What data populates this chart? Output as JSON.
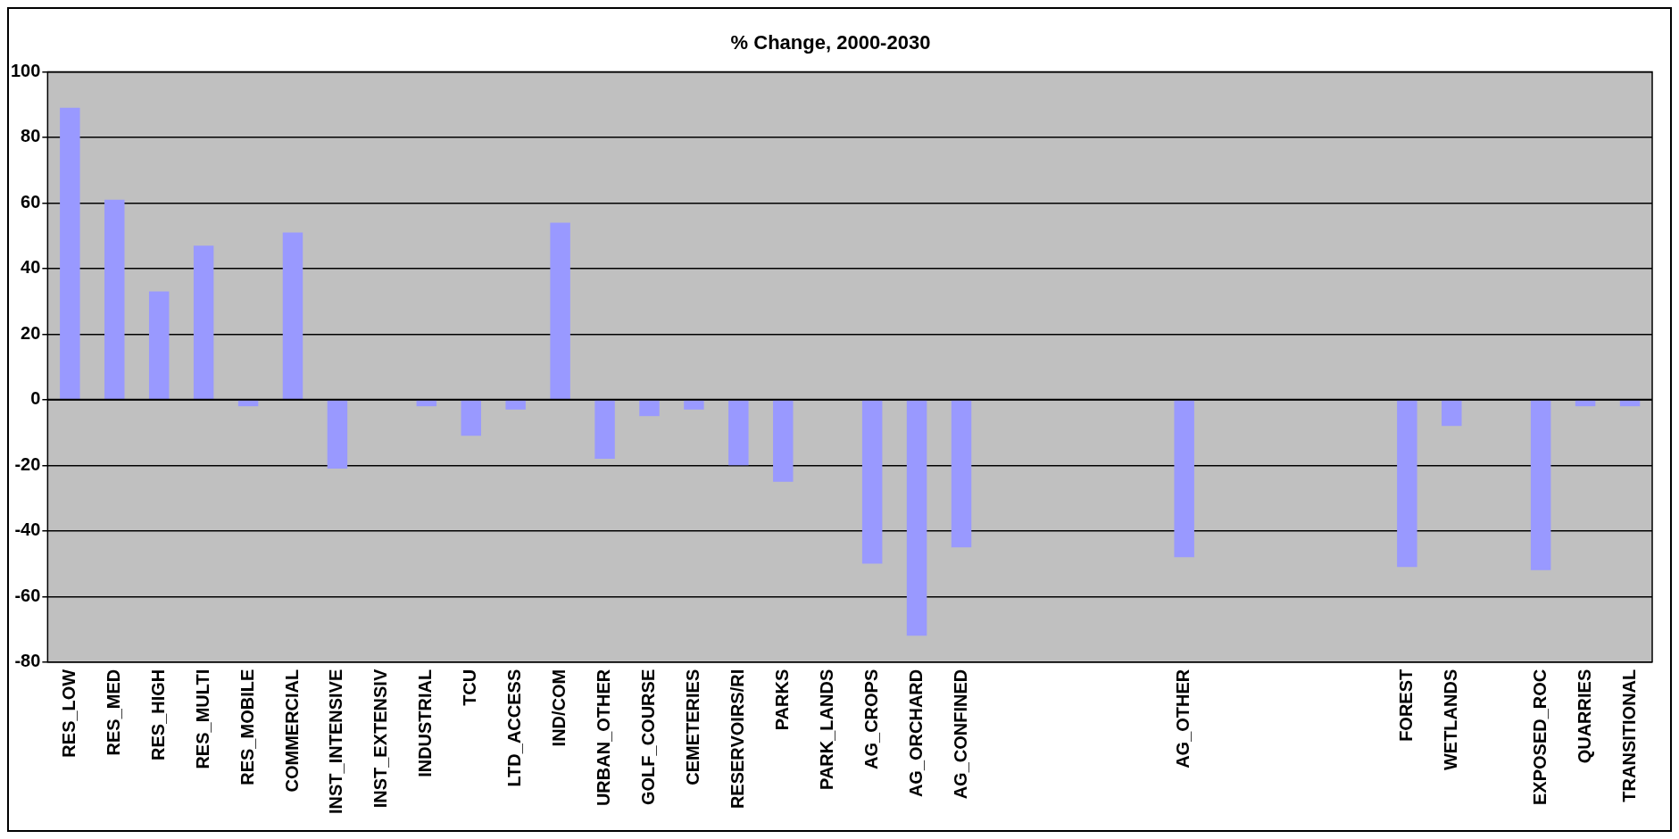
{
  "chart_data": {
    "type": "bar",
    "title": "% Change, 2000-2030",
    "categories": [
      "RES_LOW",
      "RES_MED",
      "RES_HIGH",
      "RES_MULTI",
      "RES_MOBILE",
      "COMMERCIAL",
      "INST_INTENSIVE",
      "INST_EXTENSIV",
      "INDUSTRIAL",
      "TCU",
      "LTD_ACCESS",
      "IND/COM",
      "URBAN_OTHER",
      "GOLF_COURSE",
      "CEMETERIES",
      "RESERVOIRS/RI",
      "PARKS",
      "PARK_LANDS",
      "AG_CROPS",
      "AG_ORCHARD",
      "AG_CONFINED",
      null,
      null,
      null,
      null,
      "AG_OTHER",
      null,
      null,
      null,
      null,
      "FOREST",
      "WETLANDS",
      null,
      "EXPOSED_ROC",
      "QUARRIES",
      "TRANSITIONAL"
    ],
    "values": [
      89,
      61,
      33,
      47,
      -2,
      51,
      -21,
      0,
      -2,
      -11,
      -3,
      54,
      -18,
      -5,
      -3,
      -20,
      -25,
      0,
      -50,
      -72,
      -45,
      null,
      null,
      null,
      null,
      -48,
      null,
      null,
      null,
      null,
      -51,
      -8,
      null,
      -52,
      -2,
      -2
    ],
    "color": "#9999ff",
    "ylim": [
      -80,
      100
    ],
    "yticks": [
      -80,
      -60,
      -40,
      -20,
      0,
      20,
      40,
      60,
      80,
      100
    ],
    "grid": "y"
  }
}
